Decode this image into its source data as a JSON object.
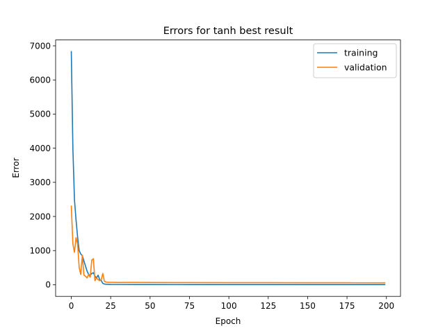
{
  "chart_data": {
    "type": "line",
    "title": "Errors for tanh best result",
    "xlabel": "Epoch",
    "ylabel": "Error",
    "xlim": [
      -9.95,
      208.95
    ],
    "ylim": [
      -341.5,
      7171.5
    ],
    "xticks": [
      0,
      25,
      50,
      75,
      100,
      125,
      150,
      175,
      200
    ],
    "yticks": [
      0,
      1000,
      2000,
      3000,
      4000,
      5000,
      6000,
      7000
    ],
    "legend": "top-right",
    "grid": false,
    "series": [
      {
        "name": "training",
        "color": "#1f77b4",
        "x": [
          0,
          1,
          2,
          3,
          4,
          5,
          6,
          7,
          8,
          9,
          10,
          11,
          12,
          13,
          14,
          15,
          16,
          17,
          18,
          19,
          20,
          21,
          22,
          25,
          30,
          40,
          50,
          75,
          100,
          125,
          150,
          175,
          199
        ],
        "y": [
          6830,
          4000,
          2500,
          1900,
          1400,
          1000,
          900,
          850,
          700,
          550,
          400,
          300,
          280,
          330,
          350,
          250,
          200,
          280,
          150,
          120,
          40,
          20,
          15,
          10,
          8,
          7,
          6,
          5,
          5,
          4,
          4,
          4,
          4
        ]
      },
      {
        "name": "validation",
        "color": "#ff7f0e",
        "x": [
          0,
          1,
          2,
          3,
          4,
          5,
          6,
          7,
          8,
          9,
          10,
          11,
          12,
          13,
          14,
          15,
          16,
          17,
          18,
          19,
          20,
          21,
          22,
          23,
          25,
          30,
          40,
          50,
          75,
          100,
          125,
          150,
          175,
          199
        ],
        "y": [
          2300,
          1200,
          950,
          1380,
          1200,
          500,
          300,
          860,
          280,
          250,
          200,
          300,
          220,
          720,
          760,
          120,
          200,
          150,
          120,
          150,
          330,
          100,
          80,
          70,
          70,
          65,
          68,
          65,
          62,
          60,
          60,
          58,
          57,
          55
        ]
      }
    ]
  }
}
